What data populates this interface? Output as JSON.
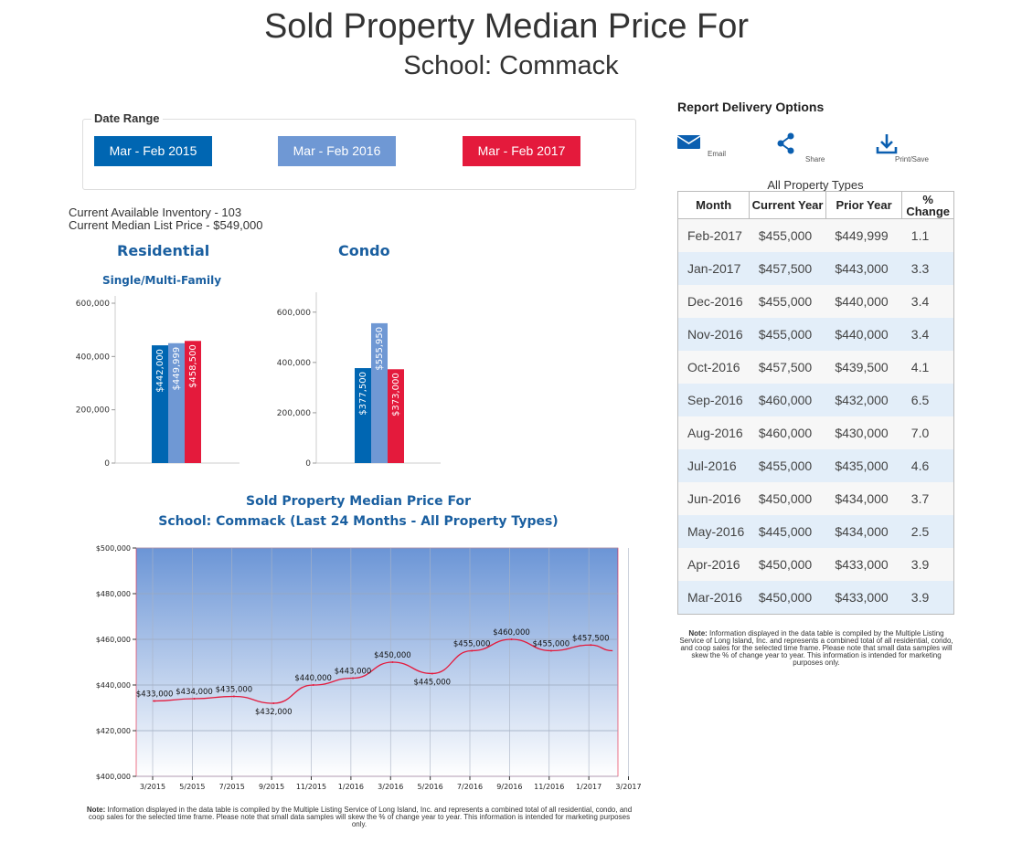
{
  "header": {
    "title": "Sold Property Median Price For",
    "subtitle": "School: Commack"
  },
  "date_range": {
    "label": "Date Range",
    "buttons": [
      {
        "label": "Mar - Feb 2015",
        "color": "#0066b2"
      },
      {
        "label": "Mar - Feb 2016",
        "color": "#6f98d4"
      },
      {
        "label": "Mar - Feb 2017",
        "color": "#e41a3c"
      }
    ]
  },
  "inventory": {
    "available": "Current Available Inventory - 103",
    "median_list": "Current Median List Price - $549,000"
  },
  "residential": {
    "title": "Residential",
    "subtitle": "Single/Multi-Family"
  },
  "condo": {
    "title": "Condo"
  },
  "delivery": {
    "title": "Report Delivery Options",
    "email": "Email",
    "share": "Share",
    "print": "Print/Save",
    "icons": [
      "envelope-icon",
      "share-icon",
      "download-icon"
    ]
  },
  "table": {
    "caption": "All Property Types",
    "headers": [
      "Month",
      "Current Year",
      "Prior Year",
      "% Change"
    ],
    "rows": [
      [
        "Feb-2017",
        "$455,000",
        "$449,999",
        "1.1"
      ],
      [
        "Jan-2017",
        "$457,500",
        "$443,000",
        "3.3"
      ],
      [
        "Dec-2016",
        "$455,000",
        "$440,000",
        "3.4"
      ],
      [
        "Nov-2016",
        "$455,000",
        "$440,000",
        "3.4"
      ],
      [
        "Oct-2016",
        "$457,500",
        "$439,500",
        "4.1"
      ],
      [
        "Sep-2016",
        "$460,000",
        "$432,000",
        "6.5"
      ],
      [
        "Aug-2016",
        "$460,000",
        "$430,000",
        "7.0"
      ],
      [
        "Jul-2016",
        "$455,000",
        "$435,000",
        "4.6"
      ],
      [
        "Jun-2016",
        "$450,000",
        "$434,000",
        "3.7"
      ],
      [
        "May-2016",
        "$445,000",
        "$434,000",
        "2.5"
      ],
      [
        "Apr-2016",
        "$450,000",
        "$433,000",
        "3.9"
      ],
      [
        "Mar-2016",
        "$450,000",
        "$433,000",
        "3.9"
      ]
    ]
  },
  "notes": {
    "prefix": "Note:",
    "right": " Information displayed in the data table is compiled by the Multiple Listing Service of Long Island, Inc. and represents a combined total of all residential, condo, and coop sales for the selected time frame. Please note that small data samples will skew the % of change year to year.  This information is intended for marketing purposes only.",
    "bottom": " Information displayed in the data table is compiled by the Multiple Listing Service of Long Island, Inc. and represents a combined total of all residential, condo, and coop sales for the selected time frame.  Please note that small data samples will skew the % of change year to year.  This information is intended for marketing purposes only."
  },
  "chart_data": [
    {
      "type": "bar",
      "name": "Residential",
      "categories": [
        "Mar - Feb 2015",
        "Mar - Feb 2016",
        "Mar - Feb 2017"
      ],
      "values": [
        442000,
        449999,
        458500
      ],
      "labels": [
        "$442,000",
        "$449,999",
        "$458,500"
      ],
      "colors": [
        "#0066b2",
        "#6f98d4",
        "#e41a3c"
      ],
      "ylim": [
        0,
        600000
      ],
      "yticks": [
        0,
        200000,
        400000,
        600000
      ],
      "ytick_labels": [
        "0",
        "200,000",
        "400,000",
        "600,000"
      ]
    },
    {
      "type": "bar",
      "name": "Condo",
      "categories": [
        "Mar - Feb 2015",
        "Mar - Feb 2016",
        "Mar - Feb 2017"
      ],
      "values": [
        377500,
        555950,
        373000
      ],
      "labels": [
        "$377,500",
        "$555,950",
        "$373,000"
      ],
      "colors": [
        "#0066b2",
        "#6f98d4",
        "#e41a3c"
      ],
      "ylim": [
        0,
        650000
      ],
      "yticks": [
        0,
        200000,
        400000,
        600000
      ],
      "ytick_labels": [
        "0",
        "200,000",
        "400,000",
        "600,000"
      ]
    },
    {
      "type": "line",
      "title": "Sold Property Median Price For",
      "subtitle": "School: Commack (Last 24 Months - All Property Types)",
      "ylim": [
        400000,
        500000
      ],
      "yticks": [
        400000,
        420000,
        440000,
        460000,
        480000,
        500000
      ],
      "ytick_labels": [
        "$400,000",
        "$420,000",
        "$440,000",
        "$460,000",
        "$480,000",
        "$500,000"
      ],
      "xtick_labels": [
        "3/2015",
        "5/2015",
        "7/2015",
        "9/2015",
        "11/2015",
        "1/2016",
        "3/2016",
        "5/2016",
        "7/2016",
        "9/2016",
        "11/2016",
        "1/2017",
        "3/2017"
      ],
      "points": [
        {
          "x": 0.5,
          "y": 433000,
          "label": "$433,000"
        },
        {
          "x": 1.5,
          "y": 434000,
          "label": "$434,000"
        },
        {
          "x": 2.5,
          "y": 435000,
          "label": "$435,000"
        },
        {
          "x": 3.5,
          "y": 432000,
          "label": "$432,000"
        },
        {
          "x": 4.5,
          "y": 440000,
          "label": "$440,000"
        },
        {
          "x": 5.5,
          "y": 443000,
          "label": "$443,000"
        },
        {
          "x": 6.5,
          "y": 450000,
          "label": "$450,000"
        },
        {
          "x": 7.5,
          "y": 445000,
          "label": "$445,000"
        },
        {
          "x": 8.5,
          "y": 455000,
          "label": "$455,000"
        },
        {
          "x": 9.5,
          "y": 460000,
          "label": "$460,000"
        },
        {
          "x": 10.5,
          "y": 455000,
          "label": "$455,000"
        },
        {
          "x": 11.5,
          "y": 457500,
          "label": "$457,500"
        }
      ],
      "color": "#e41a3c",
      "grid": true
    }
  ]
}
